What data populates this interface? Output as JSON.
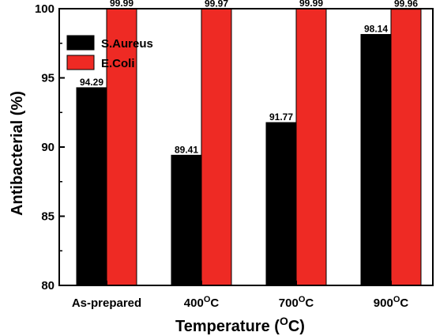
{
  "chart_data": {
    "type": "bar",
    "categories": [
      "As-prepared",
      "400",
      "700",
      "900"
    ],
    "category_suffix": "C",
    "category_suffix_sup": "O",
    "series": [
      {
        "name": "S.Aureus",
        "color": "#000000",
        "values": [
          94.29,
          89.41,
          91.77,
          98.14
        ],
        "labels": [
          "94.29",
          "89.41",
          "91.77",
          "98.14"
        ]
      },
      {
        "name": "E.Coli",
        "color": "#ee2a24",
        "values": [
          99.99,
          99.97,
          99.99,
          99.96
        ],
        "labels": [
          "99.99",
          "99.97",
          "99.99",
          "99.96"
        ]
      }
    ],
    "xlabel": "Temperature (",
    "xlabel_sup": "O",
    "xlabel_end": "C)",
    "ylabel": "Antibacterial (%)",
    "ylim": [
      80,
      100
    ],
    "yticks": [
      80,
      85,
      90,
      95,
      100
    ],
    "legend_position": "top-left",
    "grid": false
  }
}
